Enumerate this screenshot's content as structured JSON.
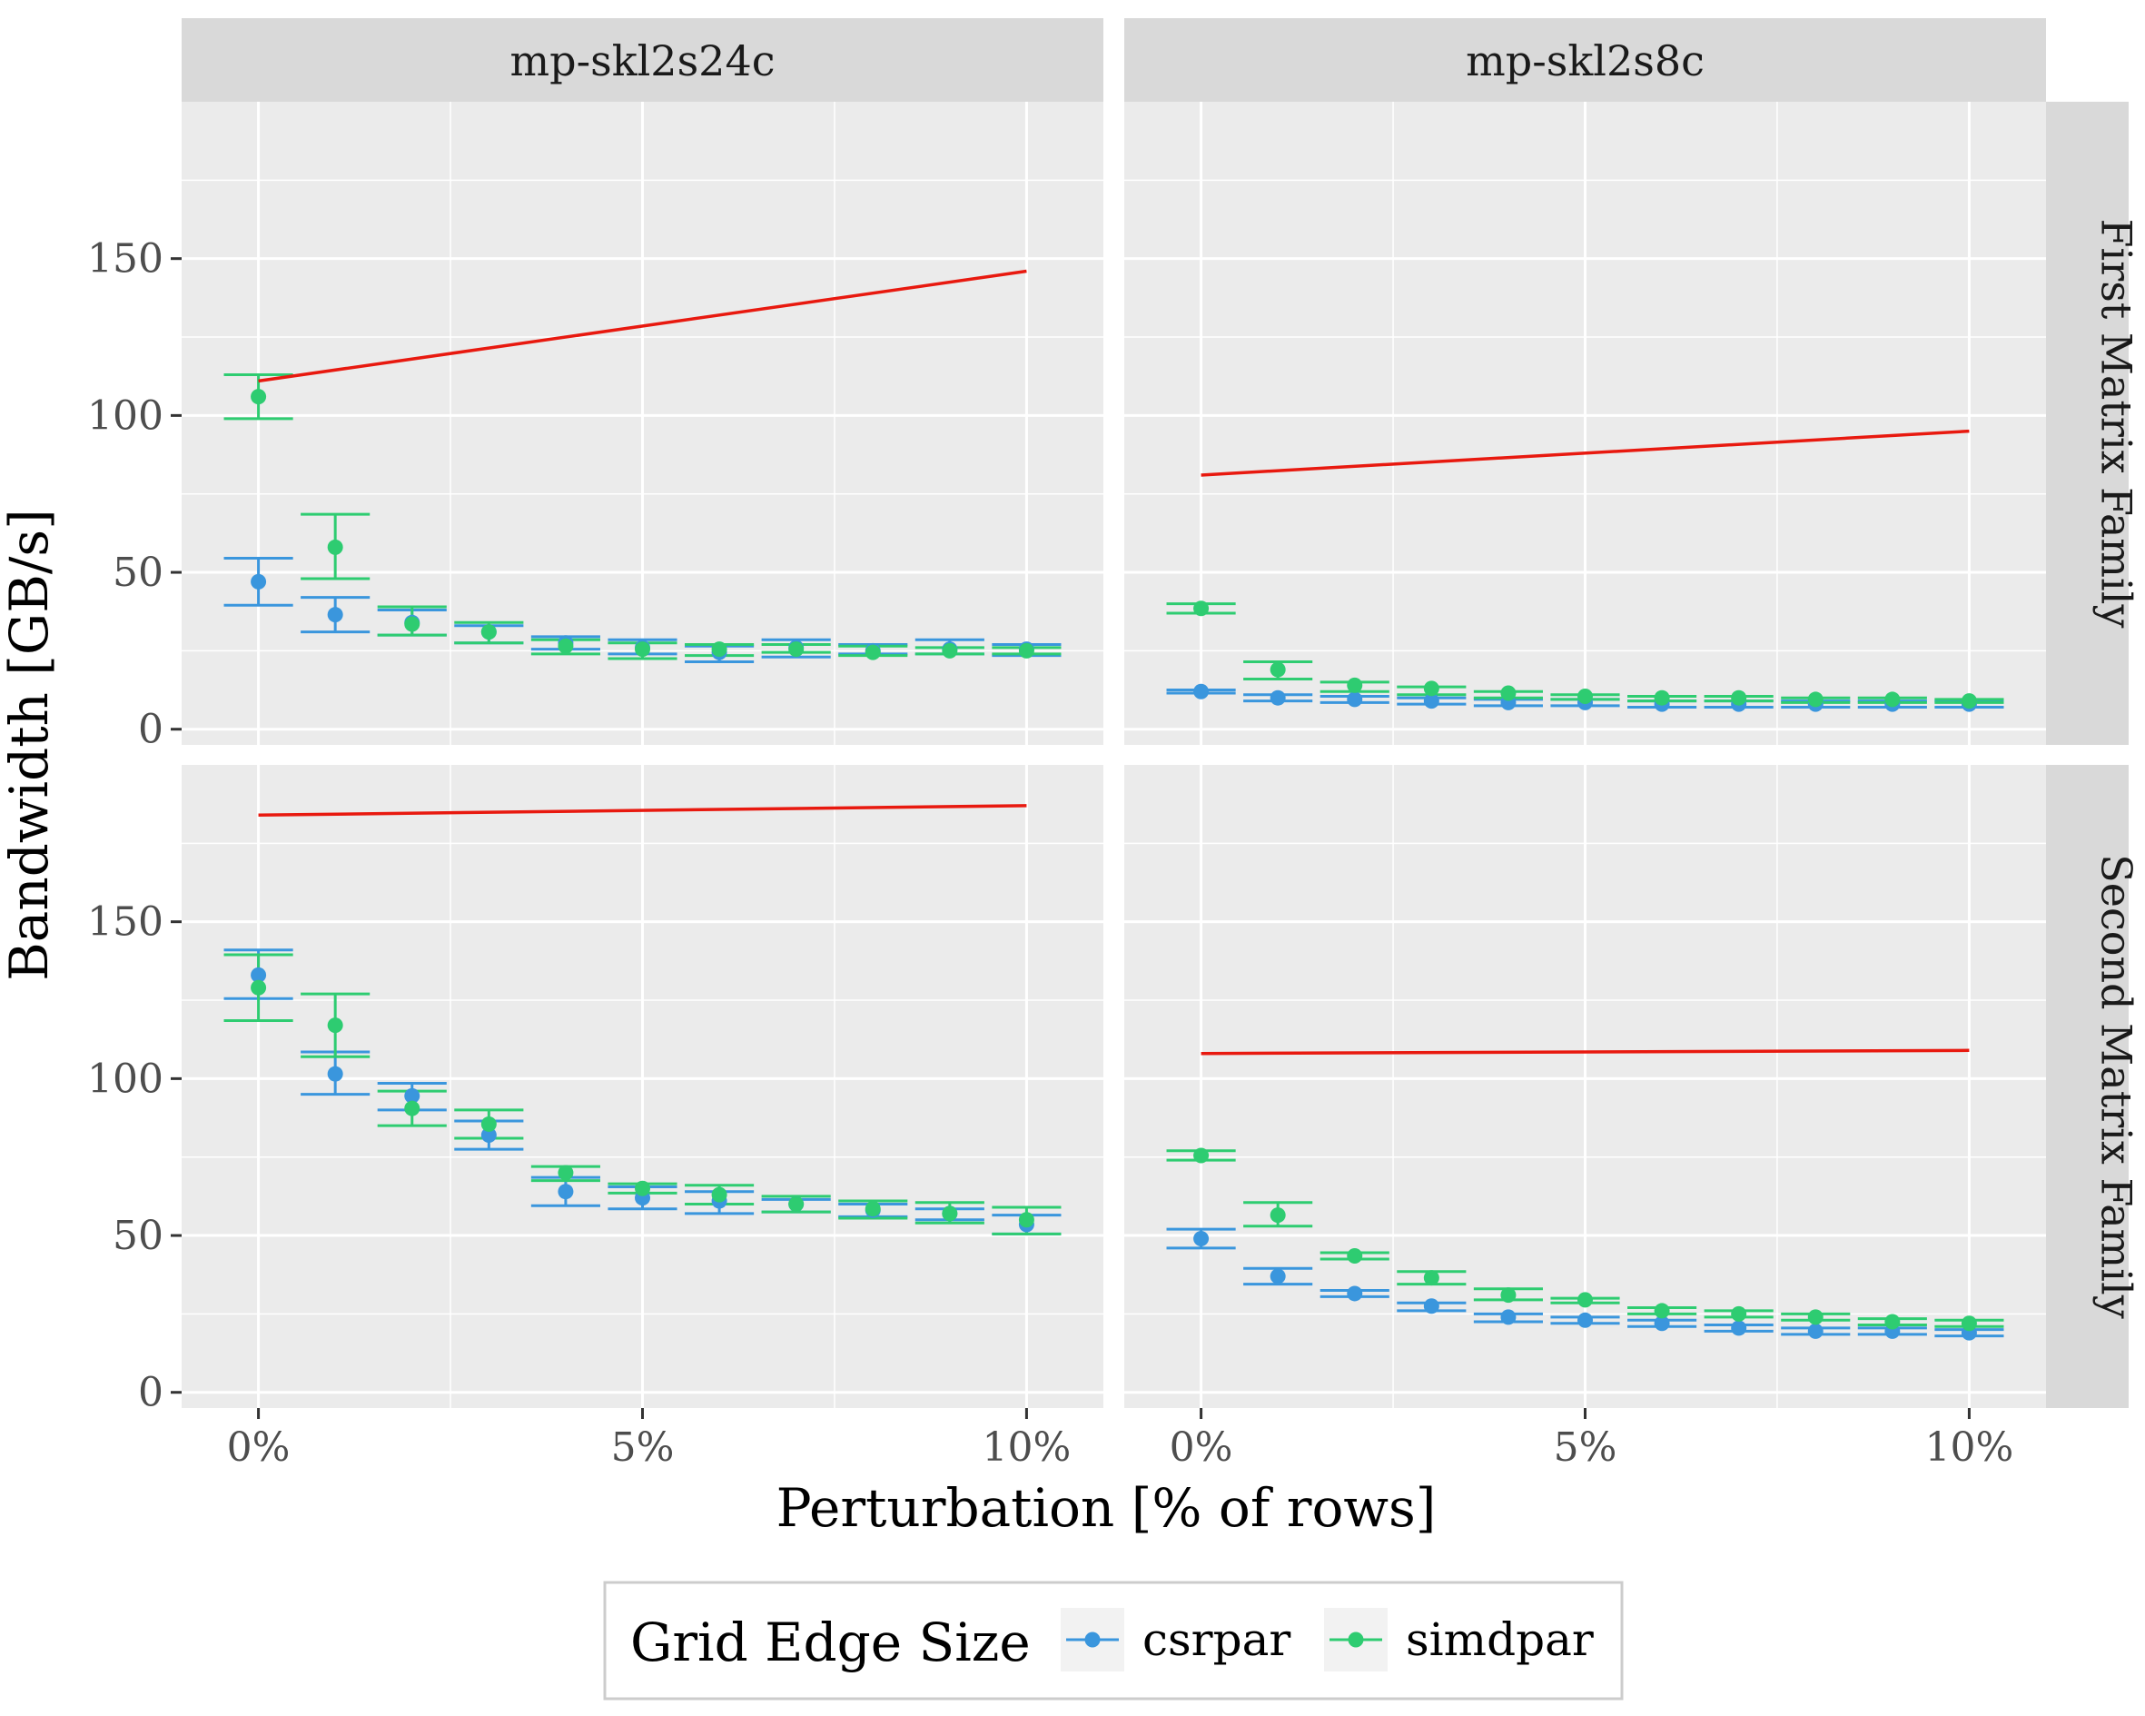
{
  "chart_data": {
    "type": "scatter",
    "xlabel": "Perturbation [% of rows]",
    "ylabel": "Bandwidth [GB/s]",
    "x_ticks": [
      "0%",
      "5%",
      "10%"
    ],
    "y_ticks": [
      "0",
      "50",
      "100",
      "150"
    ],
    "xlim": [
      -1,
      11
    ],
    "ylim": [
      -5,
      200
    ],
    "grid": true,
    "col_strips": [
      "mp-skl2s24c",
      "mp-skl2s8c"
    ],
    "row_strips": [
      "First Matrix Family",
      "Second Matrix Family"
    ],
    "legend": {
      "title": "Grid Edge Size",
      "position": "bottom",
      "entries": [
        {
          "label": "csrpar",
          "color": "#3a96dd"
        },
        {
          "label": "simdpar",
          "color": "#2ecc71"
        }
      ]
    },
    "panels": [
      {
        "col": 0,
        "row": 0,
        "peak": {
          "color": "#e8190f",
          "x": [
            0,
            10
          ],
          "y": [
            111,
            146
          ]
        },
        "series": [
          {
            "name": "csrpar",
            "color": "#3a96dd",
            "x": [
              0,
              1,
              2,
              3,
              4,
              5,
              6,
              7,
              8,
              9,
              10
            ],
            "y": [
              47,
              36.5,
              34,
              31,
              27.5,
              26,
              24.5,
              26,
              25,
              25.5,
              25.5
            ],
            "ymin": [
              39.5,
              31,
              30,
              27.5,
              25.5,
              24,
              21.5,
              23,
              24,
              24,
              23.5
            ],
            "ymax": [
              54.5,
              42,
              38,
              33,
              29.5,
              28.5,
              26.5,
              28.5,
              27,
              28.5,
              27
            ]
          },
          {
            "name": "simdpar",
            "color": "#2ecc71",
            "x": [
              0,
              1,
              2,
              3,
              4,
              5,
              6,
              7,
              8,
              9,
              10
            ],
            "y": [
              106,
              58,
              33.5,
              31,
              26.5,
              25.5,
              25.5,
              25.5,
              24.5,
              25,
              25
            ],
            "ymin": [
              99,
              48,
              30,
              27.5,
              24,
              22.5,
              23.5,
              24.5,
              23.5,
              24,
              24
            ],
            "ymax": [
              113,
              68.5,
              39,
              34,
              28.5,
              27.5,
              27,
              27,
              26.5,
              26,
              26
            ]
          }
        ]
      },
      {
        "col": 1,
        "row": 0,
        "peak": {
          "color": "#e8190f",
          "x": [
            0,
            10
          ],
          "y": [
            81,
            95
          ]
        },
        "series": [
          {
            "name": "csrpar",
            "color": "#3a96dd",
            "x": [
              0,
              1,
              2,
              3,
              4,
              5,
              6,
              7,
              8,
              9,
              10
            ],
            "y": [
              12,
              10,
              9.5,
              9,
              8.5,
              8.5,
              8,
              8,
              8,
              8,
              8
            ],
            "ymin": [
              11.5,
              9,
              8.5,
              8,
              7.5,
              7.5,
              7,
              7,
              7,
              7,
              7
            ],
            "ymax": [
              12.5,
              11,
              10.5,
              10,
              9.5,
              9.5,
              9,
              9,
              9,
              9,
              9
            ]
          },
          {
            "name": "simdpar",
            "color": "#2ecc71",
            "x": [
              0,
              1,
              2,
              3,
              4,
              5,
              6,
              7,
              8,
              9,
              10
            ],
            "y": [
              38.5,
              19,
              14,
              13,
              11.5,
              10.5,
              10,
              10,
              9.5,
              9.5,
              9
            ],
            "ymin": [
              37,
              16,
              12,
              11,
              10,
              9.5,
              9,
              9,
              8.5,
              8.5,
              8.5
            ],
            "ymax": [
              40,
              21.5,
              15,
              13.5,
              12,
              11,
              10.5,
              10.5,
              10,
              10,
              9.5
            ]
          }
        ]
      },
      {
        "col": 0,
        "row": 1,
        "peak": {
          "color": "#e8190f",
          "x": [
            0,
            10
          ],
          "y": [
            184,
            187
          ]
        },
        "series": [
          {
            "name": "csrpar",
            "color": "#3a96dd",
            "x": [
              0,
              1,
              2,
              3,
              4,
              5,
              6,
              7,
              8,
              9,
              10
            ],
            "y": [
              133,
              101.5,
              94.5,
              82,
              64,
              62,
              61,
              60,
              58,
              57,
              53.5
            ],
            "ymin": [
              125.5,
              95,
              90,
              77.5,
              59.5,
              58.5,
              57,
              57.5,
              56,
              55,
              50.5
            ],
            "ymax": [
              141,
              108.5,
              98.5,
              86.5,
              68.5,
              65.5,
              64,
              61.5,
              60,
              58.5,
              56.5
            ]
          },
          {
            "name": "simdpar",
            "color": "#2ecc71",
            "x": [
              0,
              1,
              2,
              3,
              4,
              5,
              6,
              7,
              8,
              9,
              10
            ],
            "y": [
              129,
              117,
              90.5,
              85.5,
              70,
              65,
              63,
              60,
              58.5,
              57,
              55
            ],
            "ymin": [
              118.5,
              107,
              85,
              81,
              67.5,
              63.5,
              60,
              57.5,
              55.5,
              54,
              50.5
            ],
            "ymax": [
              139.5,
              127,
              96,
              90,
              72,
              66.5,
              66,
              62.5,
              61,
              60.5,
              59
            ]
          }
        ]
      },
      {
        "col": 1,
        "row": 1,
        "peak": {
          "color": "#e8190f",
          "x": [
            0,
            10
          ],
          "y": [
            108,
            109
          ]
        },
        "series": [
          {
            "name": "csrpar",
            "color": "#3a96dd",
            "x": [
              0,
              1,
              2,
              3,
              4,
              5,
              6,
              7,
              8,
              9,
              10
            ],
            "y": [
              49,
              37,
              31.5,
              27.5,
              24,
              23,
              22,
              20.5,
              19.5,
              19.5,
              19
            ],
            "ymin": [
              46,
              34.5,
              30.5,
              26,
              22.5,
              22,
              21,
              19.5,
              18.5,
              18.5,
              18
            ],
            "ymax": [
              52,
              39.5,
              32.5,
              28.5,
              25,
              24,
              23,
              21.5,
              20.5,
              20.5,
              20
            ]
          },
          {
            "name": "simdpar",
            "color": "#2ecc71",
            "x": [
              0,
              1,
              2,
              3,
              4,
              5,
              6,
              7,
              8,
              9,
              10
            ],
            "y": [
              75.5,
              56.5,
              43.5,
              36.5,
              31,
              29.5,
              26,
              25,
              24,
              22.5,
              22
            ],
            "ymin": [
              74,
              53,
              42.5,
              34.5,
              29.5,
              28.5,
              25,
              24,
              23,
              21.5,
              21
            ],
            "ymax": [
              77,
              60.5,
              44.5,
              38.5,
              33,
              30,
              27,
              26,
              25,
              23.5,
              23
            ]
          }
        ]
      }
    ]
  }
}
